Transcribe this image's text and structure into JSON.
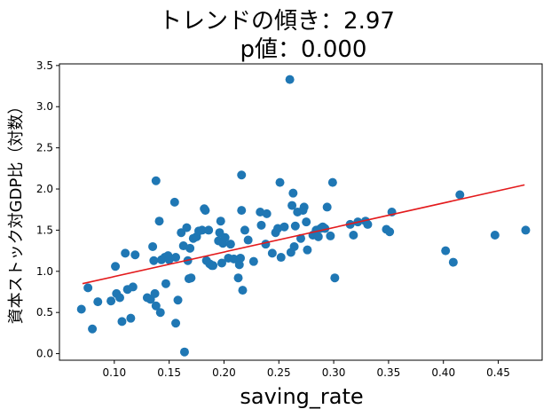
{
  "chart_data": {
    "type": "scatter",
    "title_lines": [
      "トレンドの傾き：2.97",
      "p値：0.000"
    ],
    "xlabel": "saving_rate",
    "ylabel": "資本ストック対GDP比（対数）",
    "xlim": [
      0.05,
      0.49
    ],
    "ylim": [
      -0.08,
      3.52
    ],
    "xticks": [
      0.1,
      0.15,
      0.2,
      0.25,
      0.3,
      0.35,
      0.4,
      0.45
    ],
    "xtick_labels": [
      "0.10",
      "0.15",
      "0.20",
      "0.25",
      "0.30",
      "0.35",
      "0.40",
      "0.45"
    ],
    "yticks": [
      0.0,
      0.5,
      1.0,
      1.5,
      2.0,
      2.5,
      3.0,
      3.5
    ],
    "ytick_labels": [
      "0.0",
      "0.5",
      "1.0",
      "1.5",
      "2.0",
      "2.5",
      "3.0",
      "3.5"
    ],
    "grid": false,
    "point_color": "#1f77b4",
    "trend_color": "#e31a1c",
    "trend_line": {
      "slope": 2.97,
      "x": [
        0.071,
        0.474
      ],
      "y": [
        0.85,
        2.05
      ]
    },
    "points": [
      {
        "x": 0.07,
        "y": 0.54
      },
      {
        "x": 0.076,
        "y": 0.8
      },
      {
        "x": 0.08,
        "y": 0.3
      },
      {
        "x": 0.085,
        "y": 0.63
      },
      {
        "x": 0.097,
        "y": 0.64
      },
      {
        "x": 0.101,
        "y": 1.06
      },
      {
        "x": 0.102,
        "y": 0.73
      },
      {
        "x": 0.105,
        "y": 0.68
      },
      {
        "x": 0.107,
        "y": 0.39
      },
      {
        "x": 0.11,
        "y": 1.22
      },
      {
        "x": 0.112,
        "y": 0.78
      },
      {
        "x": 0.115,
        "y": 0.43
      },
      {
        "x": 0.117,
        "y": 0.81
      },
      {
        "x": 0.119,
        "y": 1.2
      },
      {
        "x": 0.13,
        "y": 0.68
      },
      {
        "x": 0.133,
        "y": 0.66
      },
      {
        "x": 0.135,
        "y": 1.3
      },
      {
        "x": 0.136,
        "y": 1.13
      },
      {
        "x": 0.137,
        "y": 0.73
      },
      {
        "x": 0.138,
        "y": 0.58
      },
      {
        "x": 0.138,
        "y": 2.1
      },
      {
        "x": 0.141,
        "y": 1.61
      },
      {
        "x": 0.142,
        "y": 0.5
      },
      {
        "x": 0.143,
        "y": 1.14
      },
      {
        "x": 0.146,
        "y": 1.17
      },
      {
        "x": 0.147,
        "y": 0.85
      },
      {
        "x": 0.149,
        "y": 1.19
      },
      {
        "x": 0.15,
        "y": 1.14
      },
      {
        "x": 0.155,
        "y": 1.84
      },
      {
        "x": 0.156,
        "y": 1.17
      },
      {
        "x": 0.156,
        "y": 0.37
      },
      {
        "x": 0.158,
        "y": 0.65
      },
      {
        "x": 0.161,
        "y": 1.47
      },
      {
        "x": 0.163,
        "y": 1.31
      },
      {
        "x": 0.164,
        "y": 0.02
      },
      {
        "x": 0.166,
        "y": 1.53
      },
      {
        "x": 0.167,
        "y": 1.13
      },
      {
        "x": 0.168,
        "y": 0.91
      },
      {
        "x": 0.169,
        "y": 1.28
      },
      {
        "x": 0.17,
        "y": 0.92
      },
      {
        "x": 0.172,
        "y": 1.4
      },
      {
        "x": 0.175,
        "y": 1.42
      },
      {
        "x": 0.177,
        "y": 1.49
      },
      {
        "x": 0.18,
        "y": 1.5
      },
      {
        "x": 0.182,
        "y": 1.76
      },
      {
        "x": 0.183,
        "y": 1.74
      },
      {
        "x": 0.184,
        "y": 1.13
      },
      {
        "x": 0.186,
        "y": 1.5
      },
      {
        "x": 0.187,
        "y": 1.09
      },
      {
        "x": 0.189,
        "y": 1.07
      },
      {
        "x": 0.19,
        "y": 1.07
      },
      {
        "x": 0.195,
        "y": 1.37
      },
      {
        "x": 0.196,
        "y": 1.47
      },
      {
        "x": 0.197,
        "y": 1.61
      },
      {
        "x": 0.198,
        "y": 1.1
      },
      {
        "x": 0.199,
        "y": 1.34
      },
      {
        "x": 0.201,
        "y": 1.41
      },
      {
        "x": 0.204,
        "y": 1.16
      },
      {
        "x": 0.206,
        "y": 1.33
      },
      {
        "x": 0.209,
        "y": 1.15
      },
      {
        "x": 0.213,
        "y": 0.92
      },
      {
        "x": 0.214,
        "y": 1.08
      },
      {
        "x": 0.215,
        "y": 1.16
      },
      {
        "x": 0.216,
        "y": 1.74
      },
      {
        "x": 0.216,
        "y": 2.17
      },
      {
        "x": 0.217,
        "y": 0.77
      },
      {
        "x": 0.219,
        "y": 1.5
      },
      {
        "x": 0.222,
        "y": 1.38
      },
      {
        "x": 0.227,
        "y": 1.12
      },
      {
        "x": 0.233,
        "y": 1.72
      },
      {
        "x": 0.234,
        "y": 1.56
      },
      {
        "x": 0.238,
        "y": 1.33
      },
      {
        "x": 0.239,
        "y": 1.7
      },
      {
        "x": 0.244,
        "y": 1.22
      },
      {
        "x": 0.247,
        "y": 1.47
      },
      {
        "x": 0.249,
        "y": 1.52
      },
      {
        "x": 0.251,
        "y": 2.08
      },
      {
        "x": 0.252,
        "y": 1.17
      },
      {
        "x": 0.255,
        "y": 1.54
      },
      {
        "x": 0.26,
        "y": 3.33
      },
      {
        "x": 0.261,
        "y": 1.23
      },
      {
        "x": 0.262,
        "y": 1.8
      },
      {
        "x": 0.263,
        "y": 1.95
      },
      {
        "x": 0.264,
        "y": 1.3
      },
      {
        "x": 0.265,
        "y": 1.55
      },
      {
        "x": 0.267,
        "y": 1.72
      },
      {
        "x": 0.27,
        "y": 1.4
      },
      {
        "x": 0.272,
        "y": 1.74
      },
      {
        "x": 0.273,
        "y": 1.78
      },
      {
        "x": 0.275,
        "y": 1.6
      },
      {
        "x": 0.276,
        "y": 1.26
      },
      {
        "x": 0.281,
        "y": 1.44
      },
      {
        "x": 0.284,
        "y": 1.5
      },
      {
        "x": 0.286,
        "y": 1.42
      },
      {
        "x": 0.288,
        "y": 1.52
      },
      {
        "x": 0.29,
        "y": 1.54
      },
      {
        "x": 0.292,
        "y": 1.52
      },
      {
        "x": 0.294,
        "y": 1.78
      },
      {
        "x": 0.297,
        "y": 1.43
      },
      {
        "x": 0.299,
        "y": 2.08
      },
      {
        "x": 0.301,
        "y": 0.92
      },
      {
        "x": 0.315,
        "y": 1.57
      },
      {
        "x": 0.318,
        "y": 1.44
      },
      {
        "x": 0.322,
        "y": 1.6
      },
      {
        "x": 0.329,
        "y": 1.61
      },
      {
        "x": 0.331,
        "y": 1.57
      },
      {
        "x": 0.348,
        "y": 1.51
      },
      {
        "x": 0.351,
        "y": 1.48
      },
      {
        "x": 0.353,
        "y": 1.72
      },
      {
        "x": 0.402,
        "y": 1.25
      },
      {
        "x": 0.409,
        "y": 1.11
      },
      {
        "x": 0.415,
        "y": 1.93
      },
      {
        "x": 0.447,
        "y": 1.44
      },
      {
        "x": 0.475,
        "y": 1.5
      }
    ]
  }
}
